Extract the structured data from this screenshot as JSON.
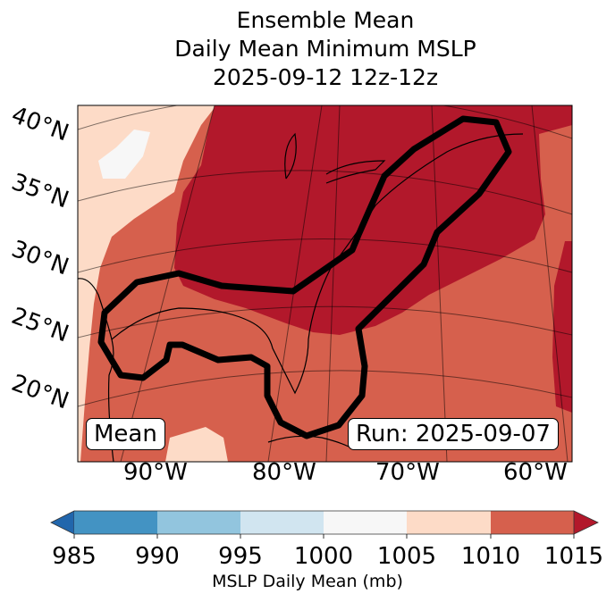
{
  "title": {
    "line1": "Ensemble Mean",
    "line2": "Daily Mean Minimum MSLP",
    "line3": "2025-09-12 12z-12z"
  },
  "map": {
    "lat_labels": [
      "40°N",
      "35°N",
      "30°N",
      "25°N",
      "20°N"
    ],
    "lon_labels": [
      "90°W",
      "80°W",
      "70°W",
      "60°W"
    ],
    "mean_label": "Mean",
    "run_label": "Run: 2025-09-07"
  },
  "colorbar": {
    "label": "MSLP Daily Mean (mb)",
    "ticks": [
      "985",
      "990",
      "995",
      "1000",
      "1005",
      "1010",
      "1015"
    ],
    "colors": [
      "#2166ac",
      "#4393c3",
      "#92c5de",
      "#d1e5f0",
      "#f7f7f7",
      "#fddbc7",
      "#d6604d",
      "#b2182b"
    ]
  }
}
